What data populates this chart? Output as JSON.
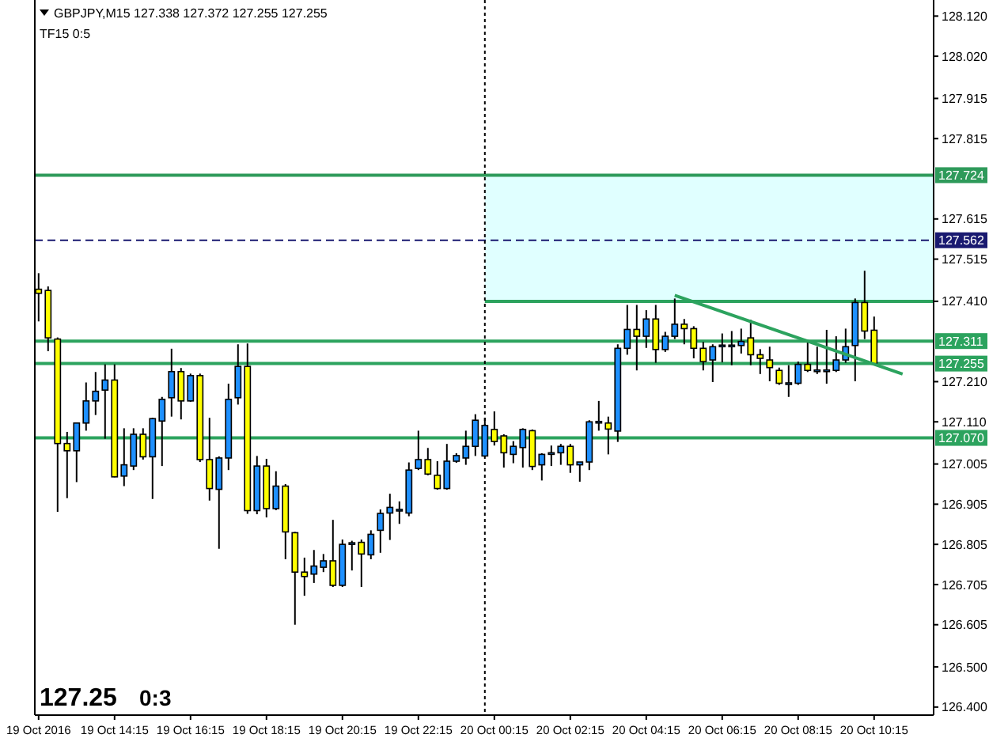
{
  "chart_data": {
    "type": "candlestick",
    "title": "GBPJPY,M15  127.338 127.372 127.255 127.255",
    "subtitle": "TF15  0:5",
    "annotations": [
      "127.25",
      "0:3"
    ],
    "x": [
      "2016-10-19T12:15",
      "2016-10-19T12:30",
      "2016-10-19T12:45",
      "2016-10-19T13:00",
      "2016-10-19T13:15",
      "2016-10-19T13:30",
      "2016-10-19T13:45",
      "2016-10-19T14:00",
      "2016-10-19T14:15",
      "2016-10-19T14:30",
      "2016-10-19T14:45",
      "2016-10-19T15:00",
      "2016-10-19T15:15",
      "2016-10-19T15:30",
      "2016-10-19T15:45",
      "2016-10-19T16:00",
      "2016-10-19T16:15",
      "2016-10-19T16:30",
      "2016-10-19T16:45",
      "2016-10-19T17:00",
      "2016-10-19T17:15",
      "2016-10-19T17:30",
      "2016-10-19T17:45",
      "2016-10-19T18:00",
      "2016-10-19T18:15",
      "2016-10-19T18:30",
      "2016-10-19T18:45",
      "2016-10-19T19:00",
      "2016-10-19T19:15",
      "2016-10-19T19:30",
      "2016-10-19T19:45",
      "2016-10-19T20:00",
      "2016-10-19T20:15",
      "2016-10-19T20:30",
      "2016-10-19T20:45",
      "2016-10-19T21:00",
      "2016-10-19T21:15",
      "2016-10-19T21:30",
      "2016-10-19T21:45",
      "2016-10-19T22:00",
      "2016-10-19T22:15",
      "2016-10-19T22:30",
      "2016-10-19T22:45",
      "2016-10-19T23:00",
      "2016-10-19T23:15",
      "2016-10-19T23:30",
      "2016-10-19T23:45",
      "2016-10-20T00:00",
      "2016-10-20T00:15",
      "2016-10-20T00:30",
      "2016-10-20T00:45",
      "2016-10-20T01:00",
      "2016-10-20T01:15",
      "2016-10-20T01:30",
      "2016-10-20T01:45",
      "2016-10-20T02:00",
      "2016-10-20T02:15",
      "2016-10-20T02:30",
      "2016-10-20T02:45",
      "2016-10-20T03:00",
      "2016-10-20T03:15",
      "2016-10-20T03:30",
      "2016-10-20T03:45",
      "2016-10-20T04:00",
      "2016-10-20T04:15",
      "2016-10-20T04:30",
      "2016-10-20T04:45",
      "2016-10-20T05:00",
      "2016-10-20T05:15",
      "2016-10-20T05:30",
      "2016-10-20T05:45",
      "2016-10-20T06:00",
      "2016-10-20T06:15",
      "2016-10-20T06:30",
      "2016-10-20T06:45",
      "2016-10-20T07:00",
      "2016-10-20T07:15",
      "2016-10-20T07:30",
      "2016-10-20T07:45",
      "2016-10-20T08:00",
      "2016-10-20T08:15",
      "2016-10-20T08:30",
      "2016-10-20T08:45",
      "2016-10-20T09:00",
      "2016-10-20T09:15",
      "2016-10-20T09:30",
      "2016-10-20T09:45",
      "2016-10-20T10:00",
      "2016-10-20T10:15"
    ],
    "ohlc": [
      [
        127.44,
        127.48,
        127.36,
        127.43
      ],
      [
        127.437,
        127.447,
        127.286,
        127.319
      ],
      [
        127.316,
        127.32,
        126.886,
        127.056
      ],
      [
        127.056,
        127.085,
        126.92,
        127.038
      ],
      [
        127.038,
        127.107,
        126.96,
        127.107
      ],
      [
        127.107,
        127.208,
        127.088,
        127.162
      ],
      [
        127.162,
        127.234,
        127.127,
        127.186
      ],
      [
        127.189,
        127.253,
        127.068,
        127.214
      ],
      [
        127.214,
        127.253,
        126.972,
        126.973
      ],
      [
        126.975,
        127.094,
        126.95,
        127.003
      ],
      [
        127.0,
        127.094,
        126.99,
        127.079
      ],
      [
        127.079,
        127.094,
        127.016,
        127.023
      ],
      [
        127.023,
        127.12,
        126.918,
        127.118
      ],
      [
        127.112,
        127.172,
        127.0,
        127.166
      ],
      [
        127.17,
        127.292,
        127.123,
        127.235
      ],
      [
        127.235,
        127.244,
        127.116,
        127.162
      ],
      [
        127.162,
        127.23,
        127.16,
        127.225
      ],
      [
        127.225,
        127.23,
        127.01,
        127.016
      ],
      [
        127.016,
        127.12,
        126.914,
        126.944
      ],
      [
        126.942,
        127.024,
        126.794,
        127.02
      ],
      [
        127.02,
        127.205,
        126.99,
        127.166
      ],
      [
        127.17,
        127.303,
        127.153,
        127.248
      ],
      [
        127.248,
        127.305,
        126.881,
        126.889
      ],
      [
        126.889,
        127.025,
        126.88,
        127.0
      ],
      [
        127.0,
        127.018,
        126.872,
        126.894
      ],
      [
        126.894,
        126.987,
        126.89,
        126.95
      ],
      [
        126.95,
        126.955,
        126.768,
        126.836
      ],
      [
        126.834,
        126.836,
        126.605,
        126.736
      ],
      [
        126.736,
        126.772,
        126.677,
        126.725
      ],
      [
        126.731,
        126.791,
        126.709,
        126.751
      ],
      [
        126.748,
        126.781,
        126.736,
        126.764
      ],
      [
        126.764,
        126.866,
        126.699,
        126.703
      ],
      [
        126.703,
        126.817,
        126.699,
        126.805
      ],
      [
        126.805,
        126.814,
        126.74,
        126.809
      ],
      [
        126.81,
        126.817,
        126.699,
        126.781
      ],
      [
        126.779,
        126.84,
        126.768,
        126.83
      ],
      [
        126.84,
        126.892,
        126.784,
        126.882
      ],
      [
        126.883,
        126.931,
        126.816,
        126.897
      ],
      [
        126.89,
        126.912,
        126.856,
        126.892
      ],
      [
        126.883,
        127.009,
        126.875,
        126.99
      ],
      [
        126.994,
        127.088,
        126.99,
        127.016
      ],
      [
        127.016,
        127.045,
        126.977,
        126.98
      ],
      [
        126.977,
        127.012,
        126.941,
        126.944
      ],
      [
        126.944,
        127.055,
        126.941,
        127.012
      ],
      [
        127.012,
        127.032,
        127.008,
        127.026
      ],
      [
        127.02,
        127.088,
        127.003,
        127.049
      ],
      [
        127.049,
        127.129,
        127.025,
        127.114
      ],
      [
        127.025,
        127.12,
        127.023,
        127.101
      ],
      [
        127.091,
        127.136,
        127.051,
        127.061
      ],
      [
        127.075,
        127.079,
        126.996,
        127.033
      ],
      [
        127.029,
        127.062,
        127.007,
        127.049
      ],
      [
        127.046,
        127.094,
        126.996,
        127.091
      ],
      [
        127.088,
        127.091,
        126.99,
        126.999
      ],
      [
        127.003,
        127.032,
        126.964,
        127.029
      ],
      [
        127.031,
        127.051,
        127.0,
        127.033
      ],
      [
        127.033,
        127.055,
        127.003,
        127.049
      ],
      [
        127.049,
        127.055,
        126.983,
        127.003
      ],
      [
        127.003,
        127.01,
        126.961,
        127.01
      ],
      [
        127.01,
        127.114,
        126.99,
        127.11
      ],
      [
        127.109,
        127.162,
        127.088,
        127.111
      ],
      [
        127.107,
        127.123,
        127.029,
        127.092
      ],
      [
        127.087,
        127.303,
        127.06,
        127.293
      ],
      [
        127.293,
        127.401,
        127.277,
        127.34
      ],
      [
        127.34,
        127.401,
        127.238,
        127.323
      ],
      [
        127.323,
        127.388,
        127.294,
        127.366
      ],
      [
        127.366,
        127.401,
        127.257,
        127.29
      ],
      [
        127.29,
        127.334,
        127.284,
        127.323
      ],
      [
        127.323,
        127.417,
        127.316,
        127.353
      ],
      [
        127.353,
        127.366,
        127.303,
        127.342
      ],
      [
        127.342,
        127.348,
        127.268,
        127.293
      ],
      [
        127.293,
        127.309,
        127.238,
        127.26
      ],
      [
        127.264,
        127.303,
        127.209,
        127.297
      ],
      [
        127.299,
        127.33,
        127.258,
        127.301
      ],
      [
        127.299,
        127.336,
        127.251,
        127.301
      ],
      [
        127.3,
        127.342,
        127.28,
        127.31
      ],
      [
        127.319,
        127.364,
        127.251,
        127.277
      ],
      [
        127.277,
        127.291,
        127.229,
        127.268
      ],
      [
        127.264,
        127.297,
        127.211,
        127.245
      ],
      [
        127.238,
        127.245,
        127.202,
        127.206
      ],
      [
        127.205,
        127.251,
        127.172,
        127.207
      ],
      [
        127.206,
        127.26,
        127.202,
        127.253
      ],
      [
        127.253,
        127.309,
        127.234,
        127.238
      ],
      [
        127.237,
        127.297,
        127.229,
        127.239
      ],
      [
        127.237,
        127.339,
        127.205,
        127.239
      ],
      [
        127.238,
        127.323,
        127.234,
        127.264
      ],
      [
        127.264,
        127.342,
        127.257,
        127.297
      ],
      [
        127.3,
        127.417,
        127.211,
        127.407
      ],
      [
        127.407,
        127.486,
        127.316,
        127.336
      ],
      [
        127.338,
        127.372,
        127.255,
        127.255
      ]
    ],
    "colors": [
      "#ffff00",
      "#ffff00",
      "#ffff00",
      "#ffff00",
      "#1e90ff",
      "#1e90ff",
      "#1e90ff",
      "#1e90ff",
      "#ffff00",
      "#1e90ff",
      "#1e90ff",
      "#ffff00",
      "#1e90ff",
      "#1e90ff",
      "#1e90ff",
      "#ffff00",
      "#1e90ff",
      "#ffff00",
      "#ffff00",
      "#1e90ff",
      "#1e90ff",
      "#1e90ff",
      "#ffff00",
      "#1e90ff",
      "#ffff00",
      "#1e90ff",
      "#ffff00",
      "#ffff00",
      "#ffff00",
      "#1e90ff",
      "#1e90ff",
      "#ffff00",
      "#1e90ff",
      "#1e90ff",
      "#ffff00",
      "#1e90ff",
      "#1e90ff",
      "#1e90ff",
      "#1e90ff",
      "#1e90ff",
      "#1e90ff",
      "#ffff00",
      "#ffff00",
      "#1e90ff",
      "#1e90ff",
      "#1e90ff",
      "#1e90ff",
      "#1e90ff",
      "#ffff00",
      "#ffff00",
      "#1e90ff",
      "#1e90ff",
      "#ffff00",
      "#1e90ff",
      "#1e90ff",
      "#1e90ff",
      "#ffff00",
      "#1e90ff",
      "#1e90ff",
      "#1e90ff",
      "#ffff00",
      "#1e90ff",
      "#1e90ff",
      "#ffff00",
      "#1e90ff",
      "#ffff00",
      "#1e90ff",
      "#1e90ff",
      "#ffff00",
      "#ffff00",
      "#ffff00",
      "#1e90ff",
      "#1e90ff",
      "#1e90ff",
      "#1e90ff",
      "#ffff00",
      "#ffff00",
      "#ffff00",
      "#ffff00",
      "#1e90ff",
      "#1e90ff",
      "#ffff00",
      "#1e90ff",
      "#1e90ff",
      "#1e90ff",
      "#1e90ff",
      "#1e90ff",
      "#ffff00",
      "#ffff00"
    ],
    "series": [
      {
        "type": "line",
        "x": [
          "2016-10-20T05:00",
          "2016-10-20T11:00"
        ],
        "values": [
          127.425,
          127.229
        ],
        "color": "#2ca35e"
      }
    ],
    "xlim": [
      "2016-10-19T12:09",
      "2016-10-20T11:49"
    ],
    "xticks": [
      {
        "value": "2016-10-19T12:15",
        "label": "19 Oct 2016"
      },
      {
        "value": "2016-10-19T14:15",
        "label": "19 Oct 14:15"
      },
      {
        "value": "2016-10-19T16:15",
        "label": "19 Oct 16:15"
      },
      {
        "value": "2016-10-19T18:15",
        "label": "19 Oct 18:15"
      },
      {
        "value": "2016-10-19T20:15",
        "label": "19 Oct 20:15"
      },
      {
        "value": "2016-10-19T22:15",
        "label": "19 Oct 22:15"
      },
      {
        "value": "2016-10-20T00:15",
        "label": "20 Oct 00:15"
      },
      {
        "value": "2016-10-20T02:15",
        "label": "20 Oct 02:15"
      },
      {
        "value": "2016-10-20T04:15",
        "label": "20 Oct 04:15"
      },
      {
        "value": "2016-10-20T06:15",
        "label": "20 Oct 06:15"
      },
      {
        "value": "2016-10-20T08:15",
        "label": "20 Oct 08:15"
      },
      {
        "value": "2016-10-20T10:15",
        "label": "20 Oct 10:15"
      }
    ],
    "ylim": [
      126.38,
      128.16
    ],
    "yticks": [
      {
        "value": 128.12,
        "label": "128.120"
      },
      {
        "value": 128.02,
        "label": "128.020"
      },
      127.915,
      127.815,
      127.615,
      127.515,
      {
        "value": 127.41,
        "label": "127.410"
      },
      {
        "value": 127.21,
        "label": "127.210"
      },
      {
        "value": 127.11,
        "label": "127.110"
      },
      127.005,
      126.905,
      126.805,
      126.705,
      126.605,
      {
        "value": 126.5,
        "label": "126.500"
      },
      {
        "value": 126.4,
        "label": "126.400"
      }
    ],
    "bands": [
      {
        "axis": "y",
        "from": 127.41,
        "to": 127.724,
        "color": "#e0ffff"
      }
    ],
    "ref_lines": [
      {
        "axis": "y",
        "value": 127.724,
        "label": "127.724",
        "color": "#2e9a5a"
      },
      {
        "axis": "y",
        "value": 127.562,
        "label": "127.562",
        "color": "#191970",
        "line_style": "dashed"
      },
      {
        "axis": "y",
        "value": 127.41,
        "color": "#2ca35e"
      },
      {
        "axis": "y",
        "value": 127.311,
        "label": "127.311",
        "color": "#2ca35e"
      },
      {
        "axis": "y",
        "value": 127.255,
        "label": "127.255",
        "color": "#2ca35e"
      },
      {
        "axis": "y",
        "value": 127.07,
        "label": "127.070",
        "color": "#2ca35e"
      },
      {
        "axis": "x",
        "value": "2016-10-20T00:00",
        "color": "#000000",
        "line_style": "dotted"
      }
    ]
  }
}
